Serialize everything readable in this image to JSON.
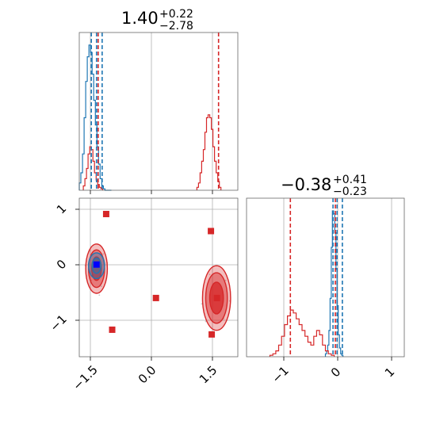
{
  "chart_data": {
    "type": "corner",
    "parameters": [
      {
        "title_value": "1.40",
        "title_plus": "+0.22",
        "title_minus": "−2.78",
        "range": [
          -1.85,
          2.1
        ]
      },
      {
        "title_value": "−0.38",
        "title_plus": "+0.41",
        "title_minus": "−0.23",
        "range": [
          -1.5,
          1.2
        ]
      }
    ],
    "x_ticks_p1": [
      {
        "value": -1.5,
        "label": "−1.5"
      },
      {
        "value": 0.0,
        "label": "0.0"
      },
      {
        "value": 1.5,
        "label": "1.5"
      }
    ],
    "x_ticks_p2": [
      {
        "value": -1,
        "label": "−1"
      },
      {
        "value": 0,
        "label": "0"
      },
      {
        "value": 1,
        "label": "1"
      }
    ],
    "y_ticks_p2": [
      {
        "value": 1,
        "label": "1"
      },
      {
        "value": 0,
        "label": "0"
      },
      {
        "value": -1,
        "label": "−1"
      }
    ],
    "colors": {
      "blue": "#1f77b4",
      "red": "#d62728"
    },
    "hist1_blue": {
      "x_start": -1.85,
      "bin_width": 0.04,
      "counts": [
        0.05,
        0.12,
        0.25,
        0.5,
        0.75,
        0.92,
        1.0,
        0.95,
        0.8,
        0.62,
        0.45,
        0.3,
        0.18,
        0.08,
        0.03,
        0.01,
        0,
        0,
        0,
        0
      ]
    },
    "hist1_red": {
      "peaks": [
        {
          "x_start": -1.75,
          "bin_width": 0.04,
          "counts": [
            0.03,
            0.08,
            0.15,
            0.25,
            0.3,
            0.28,
            0.2,
            0.12,
            0.07,
            0.04,
            0.02,
            0.01
          ]
        },
        {
          "x_start": 1.08,
          "bin_width": 0.04,
          "counts": [
            0.02,
            0.05,
            0.12,
            0.2,
            0.28,
            0.4,
            0.5,
            0.52,
            0.5,
            0.42,
            0.3,
            0.2,
            0.12,
            0.06,
            0.02
          ]
        }
      ]
    },
    "hist1_lines": [
      {
        "series": "blue",
        "x": -1.55
      },
      {
        "series": "blue",
        "x": -1.42
      },
      {
        "series": "blue",
        "x": -1.28
      },
      {
        "series": "red",
        "x": -1.38
      },
      {
        "series": "red",
        "x": 1.62
      }
    ],
    "hist2_blue": {
      "x_start": -0.15,
      "bin_width": 0.02,
      "counts": [
        0.02,
        0.04,
        0.08,
        0.18,
        0.4,
        0.75,
        1.0,
        0.98,
        0.85,
        0.6,
        0.35,
        0.15,
        0.06,
        0.02,
        0.01
      ]
    },
    "hist2_red": {
      "x_start": -1.1,
      "bin_width": 0.05,
      "counts": [
        0.01,
        0.02,
        0.04,
        0.08,
        0.14,
        0.22,
        0.28,
        0.32,
        0.3,
        0.26,
        0.22,
        0.18,
        0.14,
        0.1,
        0.08,
        0.14,
        0.18,
        0.15,
        0.08,
        0.04,
        0.02,
        0.01
      ]
    },
    "hist2_lines": [
      {
        "series": "red",
        "x": -0.75
      },
      {
        "series": "red",
        "x": 0.02
      },
      {
        "series": "blue",
        "x": -0.02
      },
      {
        "series": "blue",
        "x": 0.05
      },
      {
        "series": "blue",
        "x": 0.14
      }
    ],
    "contours_red": [
      {
        "cx": 1.57,
        "cy": -0.5,
        "rx": 0.35,
        "ry": 0.55,
        "level": "outer"
      },
      {
        "cx": 1.57,
        "cy": -0.5,
        "rx": 0.27,
        "ry": 0.43,
        "level": "mid"
      },
      {
        "cx": 1.57,
        "cy": -0.5,
        "rx": 0.17,
        "ry": 0.27,
        "level": "inner"
      },
      {
        "cx": -1.42,
        "cy": 0.0,
        "rx": 0.27,
        "ry": 0.42,
        "level": "outer"
      },
      {
        "cx": -1.42,
        "cy": 0.0,
        "rx": 0.2,
        "ry": 0.32,
        "level": "mid"
      },
      {
        "cx": -1.42,
        "cy": 0.0,
        "rx": 0.12,
        "ry": 0.2,
        "level": "inner"
      }
    ],
    "contours_blue": [
      {
        "cx": -1.42,
        "cy": 0.05,
        "rx": 0.2,
        "ry": 0.22
      },
      {
        "cx": -1.42,
        "cy": 0.05,
        "rx": 0.11,
        "ry": 0.13
      }
    ],
    "red_squares": [
      {
        "x": -1.18,
        "y": 0.93
      },
      {
        "x": 1.43,
        "y": 0.64
      },
      {
        "x": 0.06,
        "y": -0.5
      },
      {
        "x": -1.03,
        "y": -1.04
      },
      {
        "x": 1.45,
        "y": -1.12
      },
      {
        "x": 1.58,
        "y": -0.5
      }
    ],
    "blue_square": {
      "x": -1.42,
      "y": 0.07
    }
  }
}
